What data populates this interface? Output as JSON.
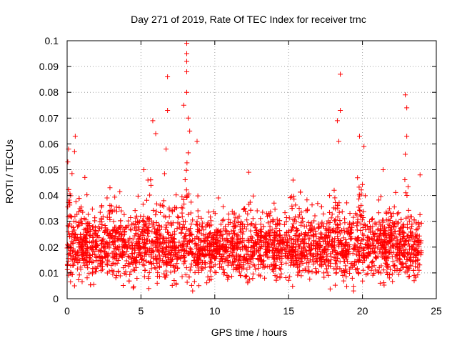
{
  "chart_data": {
    "type": "scatter",
    "title": "Day 271 of 2019, Rate Of TEC Index for receiver trnc",
    "xlabel": "GPS time / hours",
    "ylabel": "ROTI / TECUs",
    "xlim": [
      0,
      25
    ],
    "ylim": [
      0,
      0.1
    ],
    "x_ticks": [
      0,
      5,
      10,
      15,
      20,
      25
    ],
    "x_tick_labels": [
      "0",
      "5",
      "10",
      "15",
      "20",
      "25"
    ],
    "y_ticks": [
      0,
      0.01,
      0.02,
      0.03,
      0.04,
      0.05,
      0.06,
      0.07,
      0.08,
      0.09,
      0.1
    ],
    "y_tick_labels": [
      "0",
      "0.01",
      "0.02",
      "0.03",
      "0.04",
      "0.05",
      "0.06",
      "0.07",
      "0.08",
      "0.09",
      "0.1"
    ],
    "grid": true,
    "marker": "+",
    "series_color": "#ff0000",
    "data_extent_hours": [
      0,
      24
    ],
    "typical_range": [
      0.008,
      0.03
    ],
    "notable_points": [
      {
        "x": 0.05,
        "y": 0.053
      },
      {
        "x": 0.1,
        "y": 0.058
      },
      {
        "x": 0.55,
        "y": 0.063
      },
      {
        "x": 0.5,
        "y": 0.057
      },
      {
        "x": 1.2,
        "y": 0.047
      },
      {
        "x": 2.9,
        "y": 0.043
      },
      {
        "x": 5.2,
        "y": 0.05
      },
      {
        "x": 5.8,
        "y": 0.069
      },
      {
        "x": 6.0,
        "y": 0.064
      },
      {
        "x": 6.8,
        "y": 0.086
      },
      {
        "x": 6.8,
        "y": 0.073
      },
      {
        "x": 6.7,
        "y": 0.058
      },
      {
        "x": 7.9,
        "y": 0.075
      },
      {
        "x": 8.1,
        "y": 0.099
      },
      {
        "x": 8.1,
        "y": 0.095
      },
      {
        "x": 8.1,
        "y": 0.092
      },
      {
        "x": 8.1,
        "y": 0.088
      },
      {
        "x": 8.1,
        "y": 0.08
      },
      {
        "x": 8.2,
        "y": 0.07
      },
      {
        "x": 8.3,
        "y": 0.065
      },
      {
        "x": 8.8,
        "y": 0.061
      },
      {
        "x": 12.3,
        "y": 0.049
      },
      {
        "x": 15.3,
        "y": 0.046
      },
      {
        "x": 18.3,
        "y": 0.069
      },
      {
        "x": 18.4,
        "y": 0.061
      },
      {
        "x": 18.5,
        "y": 0.087
      },
      {
        "x": 18.5,
        "y": 0.073
      },
      {
        "x": 19.8,
        "y": 0.063
      },
      {
        "x": 20.1,
        "y": 0.059
      },
      {
        "x": 21.4,
        "y": 0.05
      },
      {
        "x": 22.9,
        "y": 0.079
      },
      {
        "x": 23.0,
        "y": 0.074
      },
      {
        "x": 23.0,
        "y": 0.063
      },
      {
        "x": 22.9,
        "y": 0.056
      },
      {
        "x": 23.9,
        "y": 0.048
      },
      {
        "x": 0.5,
        "y": 0.005
      },
      {
        "x": 6.1,
        "y": 0.006
      },
      {
        "x": 8.5,
        "y": 0.003
      },
      {
        "x": 19.4,
        "y": 0.003
      },
      {
        "x": 21.2,
        "y": 0.006
      },
      {
        "x": 23.5,
        "y": 0.007
      }
    ],
    "bursts": [
      {
        "center": 0.2,
        "width": 0.3,
        "peak": 0.05
      },
      {
        "center": 1.0,
        "width": 0.5,
        "peak": 0.038
      },
      {
        "center": 2.8,
        "width": 0.6,
        "peak": 0.04
      },
      {
        "center": 5.6,
        "width": 0.6,
        "peak": 0.045
      },
      {
        "center": 6.7,
        "width": 0.5,
        "peak": 0.052
      },
      {
        "center": 8.1,
        "width": 0.9,
        "peak": 0.062
      },
      {
        "center": 12.2,
        "width": 0.5,
        "peak": 0.04
      },
      {
        "center": 15.2,
        "width": 0.8,
        "peak": 0.04
      },
      {
        "center": 18.4,
        "width": 0.7,
        "peak": 0.05
      },
      {
        "center": 19.9,
        "width": 0.6,
        "peak": 0.048
      },
      {
        "center": 21.3,
        "width": 0.4,
        "peak": 0.04
      },
      {
        "center": 22.9,
        "width": 0.6,
        "peak": 0.05
      }
    ]
  }
}
